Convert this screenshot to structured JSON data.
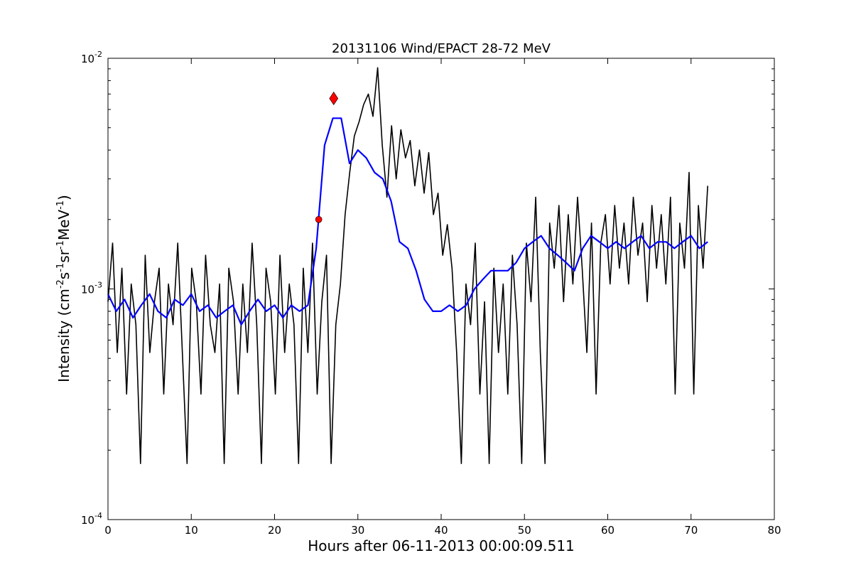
{
  "chart_data": {
    "type": "line",
    "title": "20131106 Wind/EPACT 28-72 MeV",
    "xlabel": "Hours after 06-11-2013 00:00:09.511",
    "ylabel_main": "Intensity (cm",
    "ylabel_parts": [
      "Intensity (cm",
      "-2",
      "s",
      "-1",
      "sr",
      "-1",
      "MeV",
      "-1",
      ")"
    ],
    "xlim": [
      0,
      80
    ],
    "ylim": [
      0.0001,
      0.01
    ],
    "yscale": "log",
    "grid": false,
    "x_ticks": [
      "0",
      "10",
      "20",
      "30",
      "40",
      "50",
      "60",
      "70",
      "80"
    ],
    "y_ticks": [
      {
        "base": "10",
        "exp": "-4"
      },
      {
        "base": "10",
        "exp": "-3"
      },
      {
        "base": "10",
        "exp": "-2"
      }
    ],
    "x_range_data": [
      0,
      72
    ],
    "series": [
      {
        "color": "#000000",
        "style": "raw",
        "values": [
          0.00088,
          0.00158,
          0.00053,
          0.00123,
          0.00035,
          0.00105,
          0.0007,
          0.000175,
          0.0014,
          0.00053,
          0.00088,
          0.00123,
          0.00035,
          0.00105,
          0.0007,
          0.00158,
          0.00053,
          0.000175,
          0.00123,
          0.00088,
          0.00035,
          0.0014,
          0.0007,
          0.00053,
          0.00105,
          0.000175,
          0.00123,
          0.00088,
          0.00035,
          0.00105,
          0.00053,
          0.00158,
          0.0007,
          0.000175,
          0.00123,
          0.00088,
          0.00035,
          0.0014,
          0.00053,
          0.00105,
          0.0007,
          0.000175,
          0.00123,
          0.00053,
          0.00158,
          0.00035,
          0.00088,
          0.0014,
          0.000175,
          0.0007,
          0.00105,
          0.0021,
          0.0032,
          0.0046,
          0.0053,
          0.0063,
          0.007,
          0.0056,
          0.0091,
          0.0042,
          0.0025,
          0.0051,
          0.003,
          0.0049,
          0.0037,
          0.0044,
          0.0028,
          0.004,
          0.0026,
          0.0039,
          0.0021,
          0.0026,
          0.0014,
          0.0019,
          0.00123,
          0.00053,
          0.000175,
          0.00105,
          0.0007,
          0.00158,
          0.00035,
          0.00088,
          0.000175,
          0.00123,
          0.00053,
          0.00105,
          0.00035,
          0.0014,
          0.0007,
          0.000175,
          0.00158,
          0.00088,
          0.0025,
          0.00053,
          0.000175,
          0.00193,
          0.00123,
          0.0023,
          0.00088,
          0.0021,
          0.00105,
          0.0025,
          0.00123,
          0.00053,
          0.00193,
          0.00035,
          0.00158,
          0.0021,
          0.00105,
          0.0023,
          0.00123,
          0.00193,
          0.00105,
          0.0025,
          0.0014,
          0.00193,
          0.00088,
          0.0023,
          0.00123,
          0.0021,
          0.00105,
          0.0025,
          0.00035,
          0.00193,
          0.00123,
          0.0032,
          0.00035,
          0.0023,
          0.00123,
          0.0028
        ]
      },
      {
        "color": "#0000ff",
        "style": "smoothed",
        "values": [
          0.00095,
          0.0008,
          0.0009,
          0.00075,
          0.00085,
          0.00095,
          0.0008,
          0.00075,
          0.0009,
          0.00085,
          0.00095,
          0.0008,
          0.00085,
          0.00075,
          0.0008,
          0.00085,
          0.0007,
          0.0008,
          0.0009,
          0.0008,
          0.00085,
          0.00075,
          0.00085,
          0.0008,
          0.00085,
          0.0015,
          0.0042,
          0.0055,
          0.0055,
          0.0035,
          0.004,
          0.0037,
          0.0032,
          0.003,
          0.0024,
          0.0016,
          0.0015,
          0.0012,
          0.0009,
          0.0008,
          0.0008,
          0.00085,
          0.0008,
          0.00085,
          0.001,
          0.0011,
          0.0012,
          0.0012,
          0.0012,
          0.0013,
          0.0015,
          0.0016,
          0.0017,
          0.0015,
          0.0014,
          0.0013,
          0.0012,
          0.0015,
          0.0017,
          0.0016,
          0.0015,
          0.0016,
          0.0015,
          0.0016,
          0.0017,
          0.0015,
          0.0016,
          0.0016,
          0.0015,
          0.0016,
          0.0017,
          0.0015,
          0.0016
        ]
      }
    ],
    "markers": [
      {
        "shape": "circle",
        "color": "#ff0000",
        "x": 25.3,
        "y": 0.002
      },
      {
        "shape": "diamond",
        "color": "#ff0000",
        "x": 27.1,
        "y": 0.0067
      }
    ]
  }
}
